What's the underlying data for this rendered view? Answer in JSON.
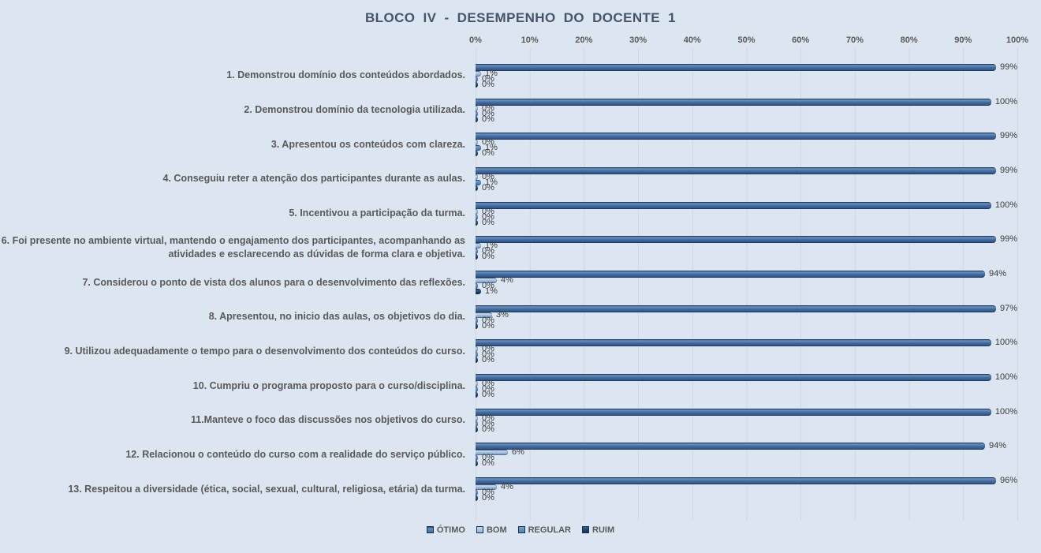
{
  "chart_data": {
    "type": "bar",
    "orientation": "horizontal",
    "title": "BLOCO IV - DESEMPENHO DO DOCENTE 1",
    "x_axis": {
      "min": 0,
      "max": 100,
      "ticks": [
        "0%",
        "10%",
        "20%",
        "30%",
        "40%",
        "50%",
        "60%",
        "70%",
        "80%",
        "90%",
        "100%"
      ],
      "position": "top",
      "grid": true
    },
    "legend": {
      "position": "bottom",
      "entries": [
        "ÓTIMO",
        "BOM",
        "REGULAR",
        "RUIM"
      ]
    },
    "value_labels": "percent shown at end of every bar",
    "categories": [
      "1. Demonstrou domínio dos conteúdos abordados.",
      "2. Demonstrou domínio da tecnologia utilizada.",
      "3. Apresentou os conteúdos com clareza.",
      "4. Conseguiu reter a atenção dos participantes durante as aulas.",
      "5. Incentivou a participação da turma.",
      "6. Foi presente no ambiente virtual, mantendo o engajamento dos participantes, acompanhando as atividades e esclarecendo as dúvidas de forma clara e objetiva.",
      "7. Considerou o ponto de vista dos alunos para o desenvolvimento das reflexões.",
      "8. Apresentou, no inicio das aulas, os objetivos do dia.",
      "9. Utilizou adequadamente o tempo para o desenvolvimento dos conteúdos do curso.",
      "10. Cumpriu o programa proposto para o curso/disciplina.",
      "11.Manteve o foco das discussões nos objetivos do curso.",
      "12. Relacionou o conteúdo do curso com a realidade do serviço público.",
      "13. Respeitou a diversidade (ética, social, sexual, cultural, religiosa, etária) da turma."
    ],
    "series": [
      {
        "name": "ÓTIMO",
        "values": [
          99,
          100,
          99,
          99,
          100,
          99,
          94,
          97,
          100,
          100,
          100,
          94,
          96
        ]
      },
      {
        "name": "BOM",
        "values": [
          1,
          0,
          0,
          0,
          0,
          1,
          4,
          3,
          0,
          0,
          0,
          6,
          4
        ]
      },
      {
        "name": "REGULAR",
        "values": [
          0,
          0,
          1,
          1,
          0,
          0,
          0,
          0,
          0,
          0,
          0,
          0,
          0
        ]
      },
      {
        "name": "RUIM",
        "values": [
          0,
          0,
          0,
          0,
          0,
          0,
          1,
          0,
          0,
          0,
          0,
          0,
          0
        ]
      }
    ]
  },
  "colors": {
    "background": "#dce6f2",
    "title": "#44546a",
    "category_label": "#595959",
    "tick_label": "#595959",
    "value_label": "#3b3b3b",
    "gridline": "#cfd6df",
    "series": {
      "ÓTIMO": "#3f689d",
      "BOM": "#95b3d7",
      "REGULAR": "#4f81bd",
      "RUIM": "#1f3f66"
    }
  }
}
